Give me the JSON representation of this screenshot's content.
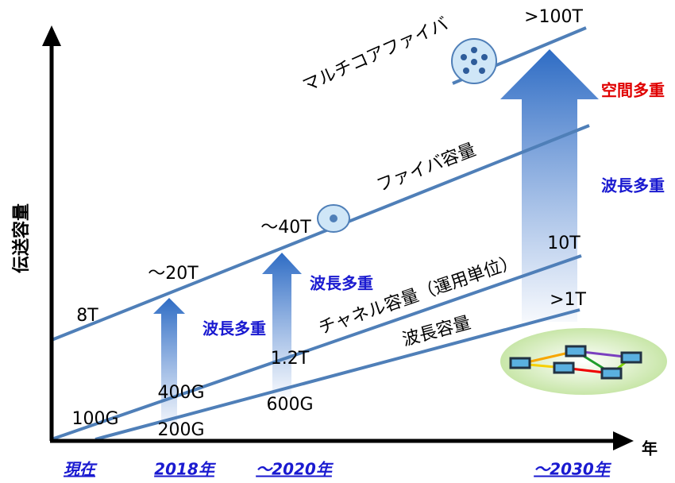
{
  "axes": {
    "y_label": "伝送容量",
    "x_label": "年",
    "x_labels": [
      "現在",
      "2018年",
      "～2020年",
      "～2030年"
    ]
  },
  "curves": [
    "マルチコアファイバ",
    "ファイバ容量",
    "チャネル容量（運用単位）",
    "波長容量"
  ],
  "capacities": [
    "8T",
    "～20T",
    "～40T",
    ">100T",
    "100G",
    "400G",
    "1.2T",
    "10T",
    "200G",
    "600G",
    ">1T"
  ],
  "techniques": [
    "波長多重",
    "波長多重",
    "空間多重",
    "波長多重"
  ]
}
